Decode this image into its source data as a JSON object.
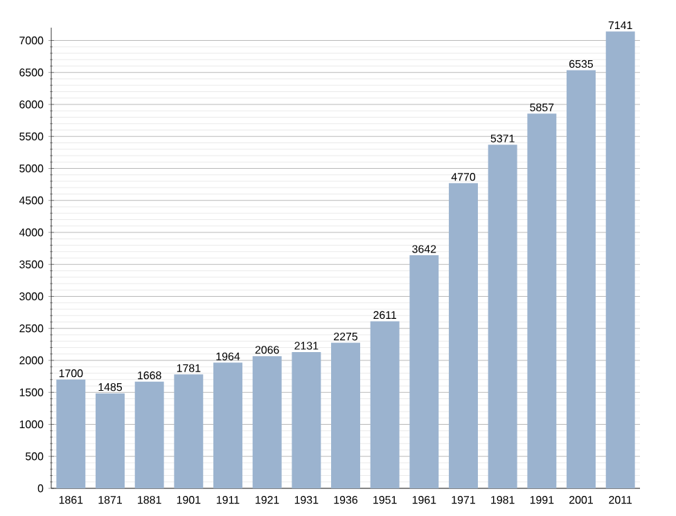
{
  "chart_data": {
    "type": "bar",
    "categories": [
      "1861",
      "1871",
      "1881",
      "1901",
      "1911",
      "1921",
      "1931",
      "1936",
      "1951",
      "1961",
      "1971",
      "1981",
      "1991",
      "2001",
      "2011"
    ],
    "values": [
      1700,
      1485,
      1668,
      1781,
      1964,
      2066,
      2131,
      2275,
      2611,
      3642,
      4770,
      5371,
      5857,
      6535,
      7141
    ],
    "color": "#9bb3cf",
    "ylim": [
      0,
      7200
    ],
    "yticks": [
      0,
      500,
      1000,
      1500,
      2000,
      2500,
      3000,
      3500,
      4000,
      4500,
      5000,
      5500,
      6000,
      6500,
      7000
    ],
    "grid": "y",
    "data_labels": true
  }
}
